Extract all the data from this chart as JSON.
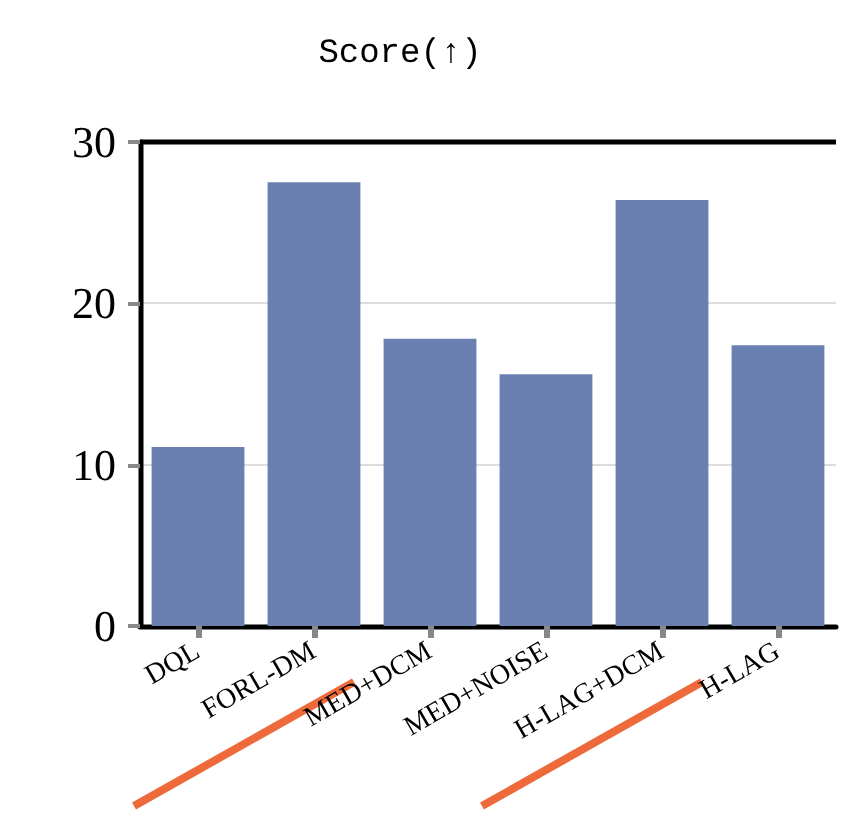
{
  "chart_data": {
    "type": "bar",
    "title": "Score(↑)",
    "categories": [
      "DQL",
      "FORL-DM",
      "MED+DCM",
      "MED+NOISE",
      "H-LAG+DCM",
      "H-LAG"
    ],
    "values": [
      11.1,
      27.5,
      17.8,
      15.6,
      26.4,
      17.4
    ],
    "color": "#6a80b0",
    "ylim": [
      0,
      30
    ],
    "yticks": [
      0,
      10,
      20,
      30
    ],
    "grid": "y"
  }
}
